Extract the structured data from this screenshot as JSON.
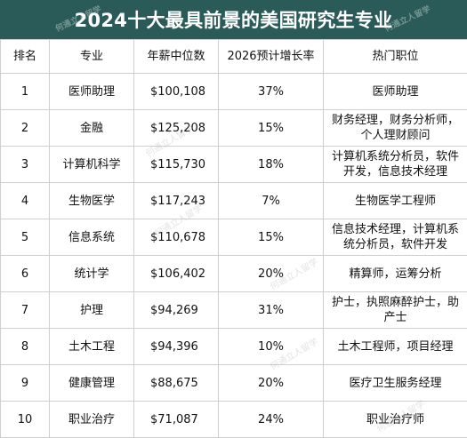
{
  "title": "2024十大最具前景的美国研究生专业",
  "watermark": "何通立人留学",
  "headers": {
    "rank": "排名",
    "major": "专业",
    "salary": "年薪中位数",
    "growth": "2026预计增长率",
    "jobs": "热门职位"
  },
  "rows": [
    {
      "rank": "1",
      "major": "医师助理",
      "salary": "$100,108",
      "growth": "37%",
      "jobs": "医师助理"
    },
    {
      "rank": "2",
      "major": "金融",
      "salary": "$125,208",
      "growth": "15%",
      "jobs": "财务经理，财务分析师，个人理财顾问"
    },
    {
      "rank": "3",
      "major": "计算机科学",
      "salary": "$115,730",
      "growth": "18%",
      "jobs": "计算机系统分析员，软件开发，信息技术经理"
    },
    {
      "rank": "4",
      "major": "生物医学",
      "salary": "$117,243",
      "growth": "7%",
      "jobs": "生物医学工程师"
    },
    {
      "rank": "5",
      "major": "信息系统",
      "salary": "$110,678",
      "growth": "15%",
      "jobs": "信息技术经理，计算机系统分析员，软件开发"
    },
    {
      "rank": "6",
      "major": "统计学",
      "salary": "$106,402",
      "growth": "20%",
      "jobs": "精算师，运筹分析"
    },
    {
      "rank": "7",
      "major": "护理",
      "salary": "$94,269",
      "growth": "31%",
      "jobs": "护士，执照麻醉护士，助产士"
    },
    {
      "rank": "8",
      "major": "土木工程",
      "salary": "$94,396",
      "growth": "10%",
      "jobs": "土木工程师，项目经理"
    },
    {
      "rank": "9",
      "major": "健康管理",
      "salary": "$88,675",
      "growth": "20%",
      "jobs": "医疗卫生服务经理"
    },
    {
      "rank": "10",
      "major": "职业治疗",
      "salary": "$71,087",
      "growth": "24%",
      "jobs": "职业治疗师"
    }
  ],
  "colors": {
    "title_bg": "#2b5b58",
    "title_text": "#ffffff",
    "grid": "#cfcfcf"
  }
}
